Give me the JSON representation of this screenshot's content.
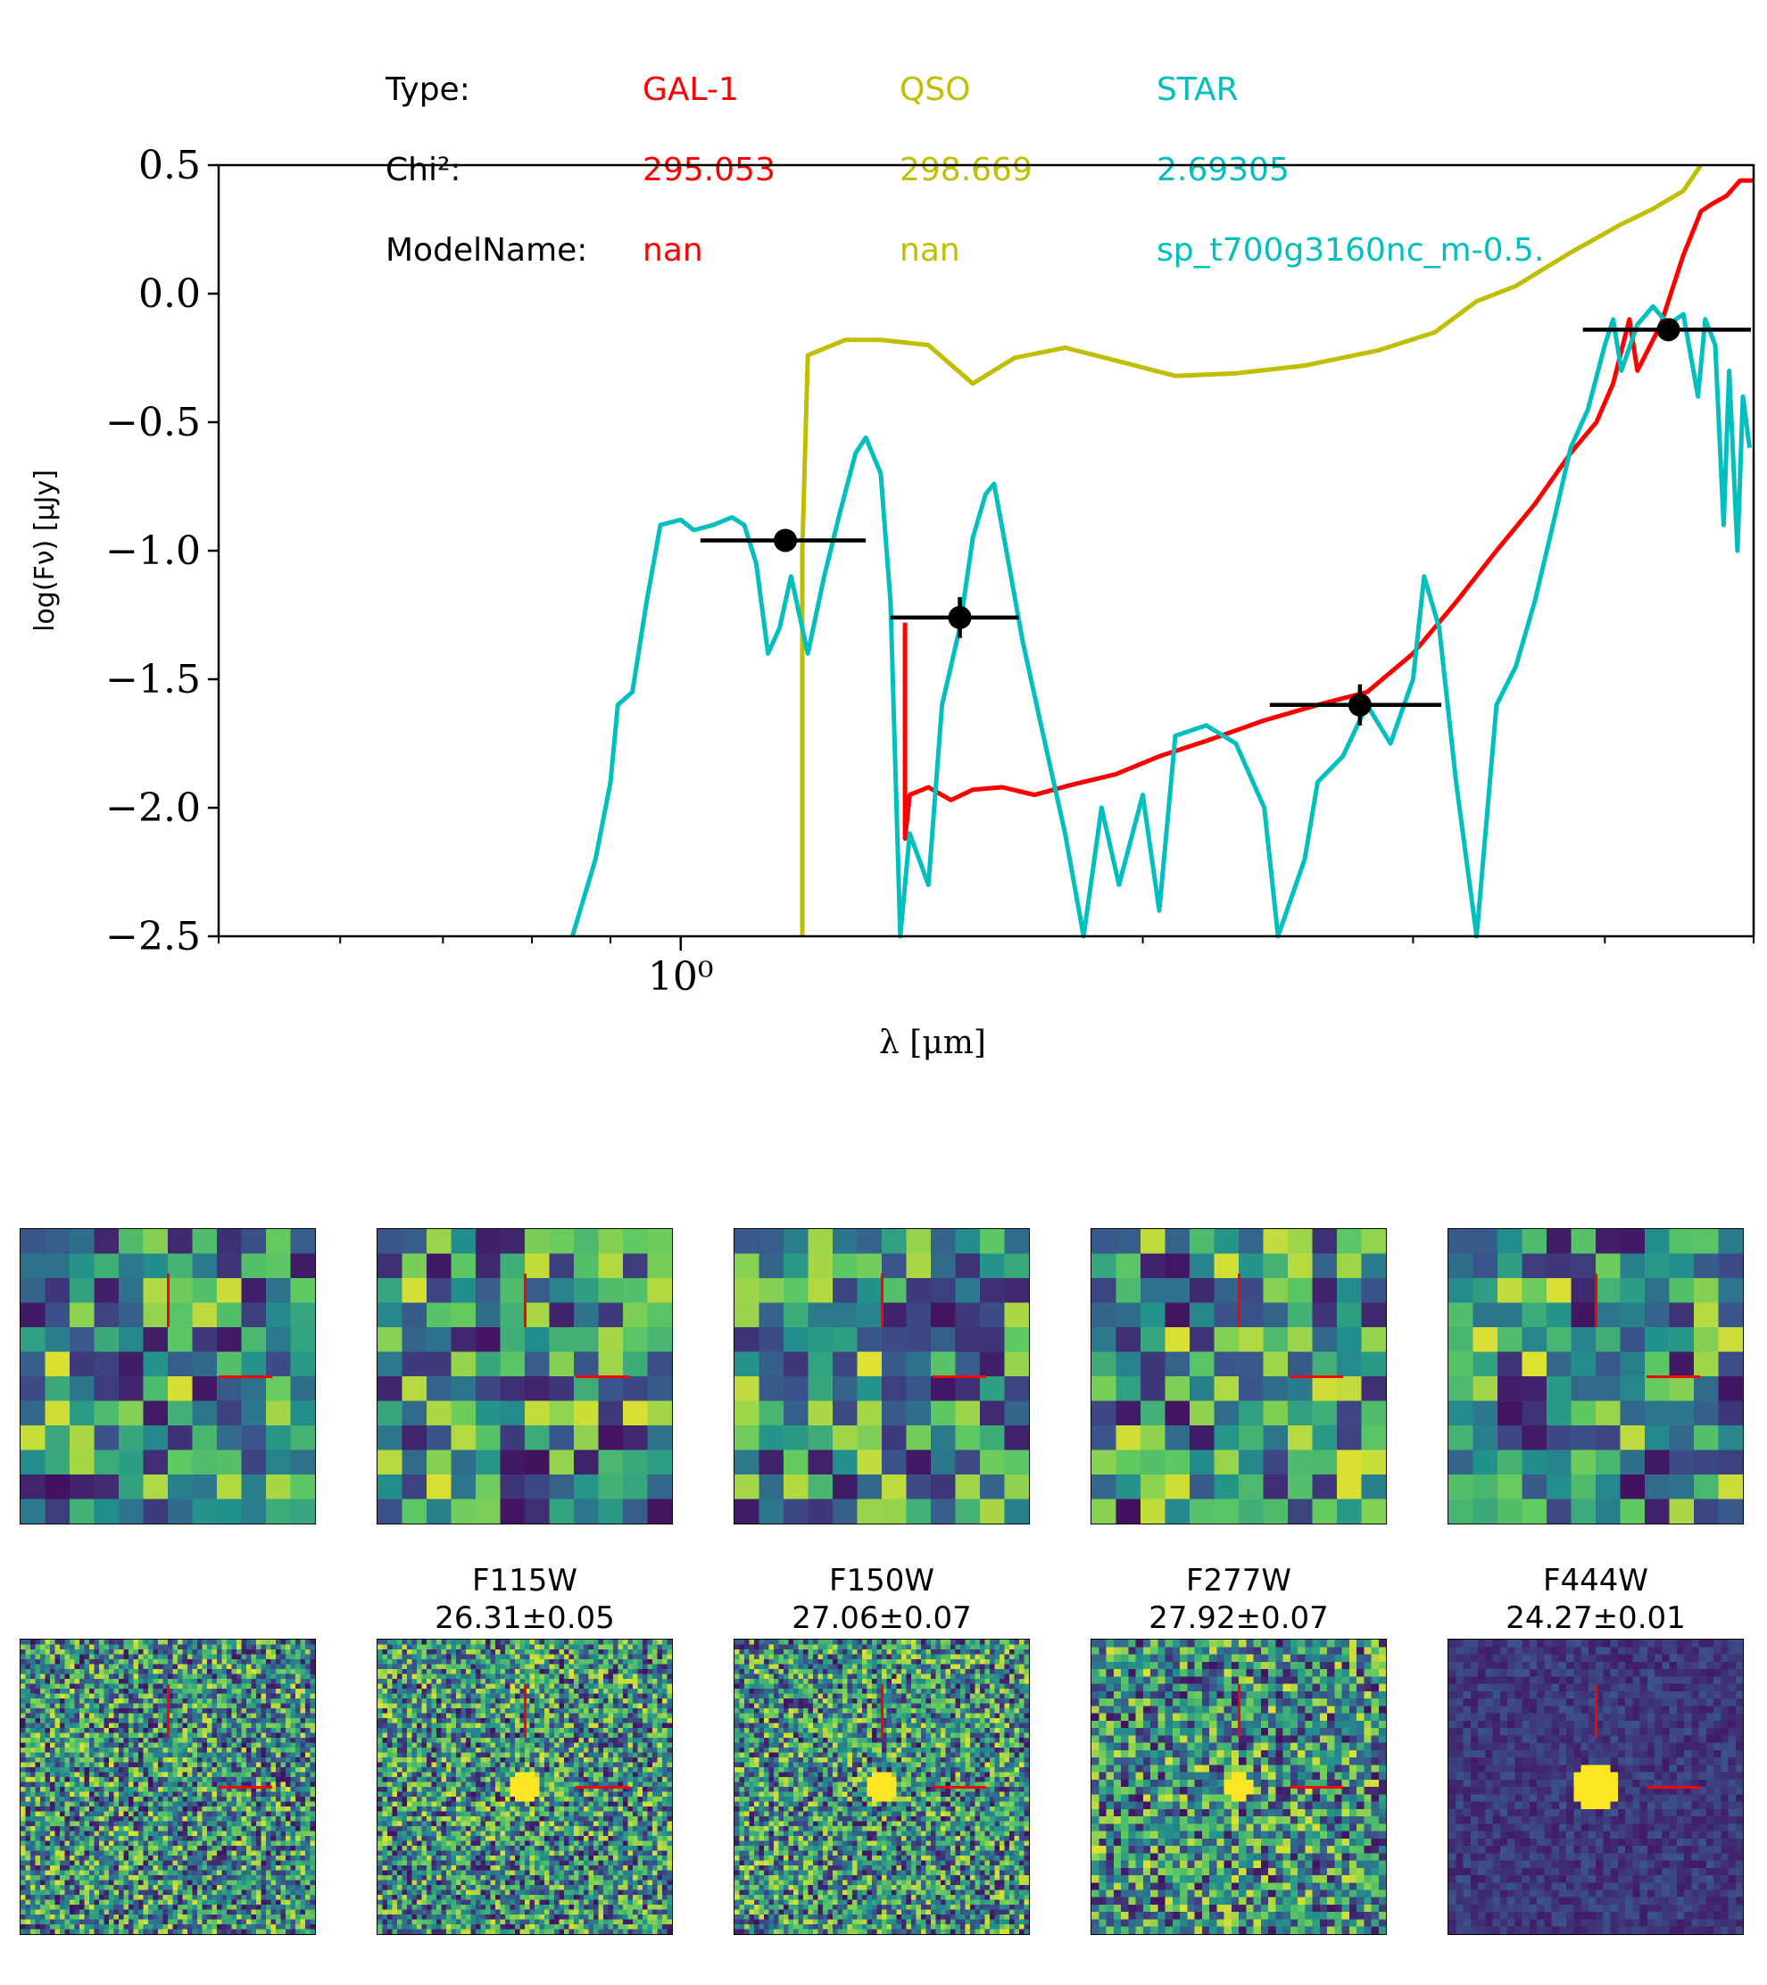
{
  "legend": {
    "row_labels": [
      "Type:",
      "Chi²:",
      "ModelName:"
    ],
    "models": [
      {
        "type": "GAL-1",
        "chi2": "295.053",
        "model_name": "nan",
        "color": "#ff0000"
      },
      {
        "type": "QSO",
        "chi2": "298.669",
        "model_name": "nan",
        "color": "#bfbf00"
      },
      {
        "type": "STAR",
        "chi2": "2.69305",
        "model_name": "sp_t700g3160nc_m-0.5.",
        "color": "#00bfbf"
      }
    ]
  },
  "chart_data": {
    "type": "line",
    "xlabel": "λ [μm]",
    "ylabel": "log(Fν) [μJy]",
    "xscale": "log",
    "xlim": [
      0.5,
      5.0
    ],
    "ylim": [
      -2.5,
      0.5
    ],
    "yticks": [
      "0.5",
      "0.0",
      "−0.5",
      "−1.0",
      "−1.5",
      "−2.0",
      "−2.5"
    ],
    "xtick_major_label": "10⁰",
    "grid": false,
    "series": [
      {
        "name": "GAL-1",
        "color": "#ff0000",
        "points": [
          [
            1.4,
            -1.28
          ],
          [
            1.4,
            -2.12
          ],
          [
            1.41,
            -1.95
          ],
          [
            1.45,
            -1.92
          ],
          [
            1.5,
            -1.97
          ],
          [
            1.55,
            -1.93
          ],
          [
            1.62,
            -1.92
          ],
          [
            1.7,
            -1.95
          ],
          [
            1.8,
            -1.91
          ],
          [
            1.92,
            -1.87
          ],
          [
            2.05,
            -1.8
          ],
          [
            2.2,
            -1.74
          ],
          [
            2.4,
            -1.66
          ],
          [
            2.6,
            -1.6
          ],
          [
            2.8,
            -1.55
          ],
          [
            3.0,
            -1.4
          ],
          [
            3.2,
            -1.2
          ],
          [
            3.4,
            -1.0
          ],
          [
            3.6,
            -0.82
          ],
          [
            3.8,
            -0.62
          ],
          [
            3.95,
            -0.5
          ],
          [
            4.05,
            -0.35
          ],
          [
            4.15,
            -0.1
          ],
          [
            4.2,
            -0.3
          ],
          [
            4.35,
            -0.12
          ],
          [
            4.5,
            0.15
          ],
          [
            4.62,
            0.32
          ],
          [
            4.7,
            0.35
          ],
          [
            4.8,
            0.38
          ],
          [
            4.9,
            0.44
          ],
          [
            5.0,
            0.44
          ]
        ]
      },
      {
        "name": "QSO",
        "color": "#bfbf00",
        "points": [
          [
            1.2,
            -2.5
          ],
          [
            1.2,
            -1.0
          ],
          [
            1.21,
            -0.24
          ],
          [
            1.28,
            -0.18
          ],
          [
            1.35,
            -0.18
          ],
          [
            1.45,
            -0.2
          ],
          [
            1.55,
            -0.35
          ],
          [
            1.65,
            -0.25
          ],
          [
            1.78,
            -0.21
          ],
          [
            1.95,
            -0.27
          ],
          [
            2.1,
            -0.32
          ],
          [
            2.3,
            -0.31
          ],
          [
            2.55,
            -0.28
          ],
          [
            2.85,
            -0.22
          ],
          [
            3.1,
            -0.15
          ],
          [
            3.3,
            -0.03
          ],
          [
            3.5,
            0.03
          ],
          [
            3.8,
            0.16
          ],
          [
            4.1,
            0.27
          ],
          [
            4.3,
            0.33
          ],
          [
            4.5,
            0.4
          ],
          [
            4.62,
            0.5
          ]
        ]
      },
      {
        "name": "STAR",
        "color": "#00bfbf",
        "points": [
          [
            0.85,
            -2.5
          ],
          [
            0.88,
            -2.2
          ],
          [
            0.9,
            -1.9
          ],
          [
            0.91,
            -1.6
          ],
          [
            0.93,
            -1.55
          ],
          [
            0.95,
            -1.2
          ],
          [
            0.97,
            -0.9
          ],
          [
            1.0,
            -0.88
          ],
          [
            1.02,
            -0.92
          ],
          [
            1.05,
            -0.9
          ],
          [
            1.08,
            -0.87
          ],
          [
            1.1,
            -0.9
          ],
          [
            1.12,
            -1.05
          ],
          [
            1.14,
            -1.4
          ],
          [
            1.16,
            -1.3
          ],
          [
            1.18,
            -1.1
          ],
          [
            1.21,
            -1.4
          ],
          [
            1.24,
            -1.1
          ],
          [
            1.27,
            -0.85
          ],
          [
            1.3,
            -0.62
          ],
          [
            1.32,
            -0.56
          ],
          [
            1.35,
            -0.7
          ],
          [
            1.37,
            -1.2
          ],
          [
            1.39,
            -2.5
          ],
          [
            1.41,
            -2.1
          ],
          [
            1.45,
            -2.3
          ],
          [
            1.48,
            -1.6
          ],
          [
            1.52,
            -1.3
          ],
          [
            1.55,
            -0.95
          ],
          [
            1.58,
            -0.78
          ],
          [
            1.6,
            -0.74
          ],
          [
            1.63,
            -1.0
          ],
          [
            1.67,
            -1.35
          ],
          [
            1.72,
            -1.7
          ],
          [
            1.78,
            -2.1
          ],
          [
            1.83,
            -2.5
          ],
          [
            1.88,
            -2.0
          ],
          [
            1.93,
            -2.3
          ],
          [
            2.0,
            -1.95
          ],
          [
            2.05,
            -2.4
          ],
          [
            2.1,
            -1.72
          ],
          [
            2.2,
            -1.68
          ],
          [
            2.3,
            -1.75
          ],
          [
            2.4,
            -2.0
          ],
          [
            2.45,
            -2.5
          ],
          [
            2.55,
            -2.2
          ],
          [
            2.6,
            -1.9
          ],
          [
            2.7,
            -1.8
          ],
          [
            2.8,
            -1.6
          ],
          [
            2.9,
            -1.75
          ],
          [
            3.0,
            -1.5
          ],
          [
            3.05,
            -1.1
          ],
          [
            3.12,
            -1.3
          ],
          [
            3.2,
            -1.9
          ],
          [
            3.3,
            -2.5
          ],
          [
            3.4,
            -1.6
          ],
          [
            3.5,
            -1.45
          ],
          [
            3.6,
            -1.2
          ],
          [
            3.7,
            -0.9
          ],
          [
            3.8,
            -0.6
          ],
          [
            3.9,
            -0.45
          ],
          [
            4.0,
            -0.2
          ],
          [
            4.05,
            -0.1
          ],
          [
            4.1,
            -0.3
          ],
          [
            4.2,
            -0.12
          ],
          [
            4.3,
            -0.05
          ],
          [
            4.4,
            -0.12
          ],
          [
            4.5,
            -0.08
          ],
          [
            4.6,
            -0.4
          ],
          [
            4.65,
            -0.1
          ],
          [
            4.72,
            -0.2
          ],
          [
            4.78,
            -0.9
          ],
          [
            4.82,
            -0.3
          ],
          [
            4.88,
            -1.0
          ],
          [
            4.92,
            -0.4
          ],
          [
            4.97,
            -0.6
          ]
        ]
      }
    ],
    "photometry": [
      {
        "x": 1.17,
        "y": -0.96,
        "xerr": [
          1.03,
          1.32
        ],
        "yerr": 0.04
      },
      {
        "x": 1.52,
        "y": -1.26,
        "xerr": [
          1.37,
          1.66
        ],
        "yerr": 0.08
      },
      {
        "x": 2.77,
        "y": -1.6,
        "xerr": [
          2.42,
          3.13
        ],
        "yerr": 0.08
      },
      {
        "x": 4.4,
        "y": -0.14,
        "xerr": [
          3.87,
          4.98
        ],
        "yerr": 0.02
      }
    ]
  },
  "cutouts": {
    "top_row": [
      {
        "seed": 11,
        "grid": 12
      },
      {
        "seed": 22,
        "grid": 12
      },
      {
        "seed": 33,
        "grid": 12
      },
      {
        "seed": 44,
        "grid": 12
      },
      {
        "seed": 55,
        "grid": 12
      }
    ],
    "bottom_row": [
      {
        "label": "",
        "seed": 66,
        "grid": 60,
        "source": false
      },
      {
        "label": "F115W\n26.31±0.05",
        "seed": 77,
        "grid": 60,
        "source": true
      },
      {
        "label": "F150W\n27.06±0.07",
        "seed": 88,
        "grid": 60,
        "source": true
      },
      {
        "label": "F277W\n27.92±0.07",
        "seed": 99,
        "grid": 40,
        "source": true
      },
      {
        "label": "F444W\n24.27±0.01",
        "seed": 111,
        "grid": 40,
        "source": true
      }
    ]
  }
}
